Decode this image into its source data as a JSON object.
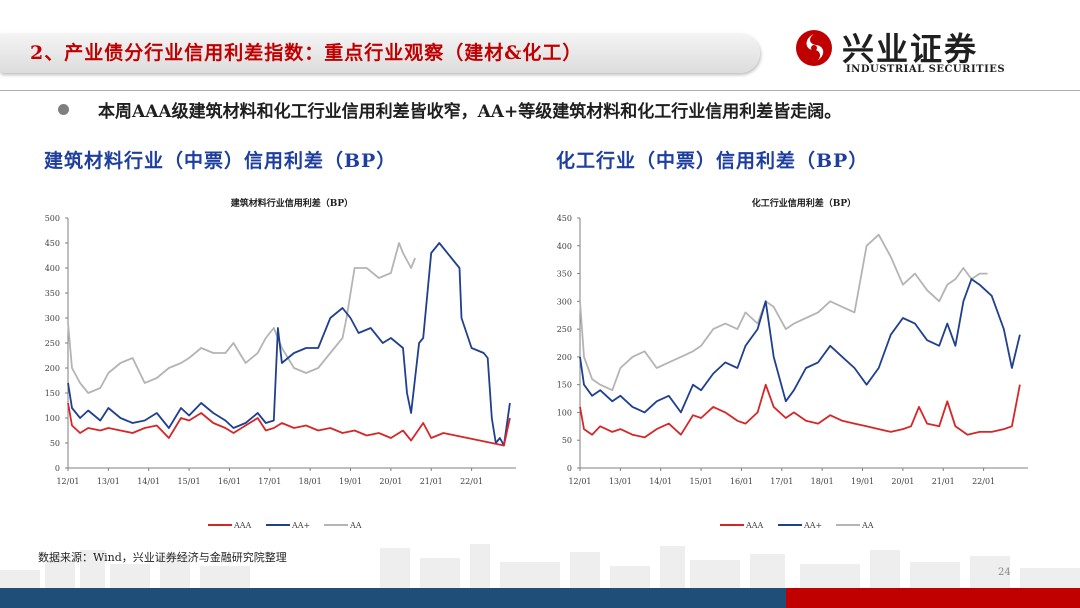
{
  "header": {
    "title": "2、产业债分行业信用利差指数：重点行业观察（建材&化工）",
    "logo_cn": "兴业证券",
    "logo_en": "INDUSTRIAL SECURITIES",
    "logo_color": "#c00000"
  },
  "bullet": {
    "text": "本周AAA级建筑材料和化工行业信用利差皆收窄，AA+等级建筑材料和化工行业信用利差皆走阔。"
  },
  "footer": {
    "source": "数据来源：Wind，兴业证券经济与金融研究院整理",
    "page_number": "24"
  },
  "chart_data": [
    {
      "type": "line",
      "heading": "建筑材料行业（中票）信用利差（BP）",
      "title": "建筑材料行业信用利差（BP）",
      "x_ticks": [
        "12/01",
        "13/01",
        "14/01",
        "15/01",
        "16/01",
        "17/01",
        "18/01",
        "19/01",
        "20/01",
        "21/01",
        "22/01"
      ],
      "ylim": [
        0,
        500
      ],
      "y_ticks": [
        "0",
        "50",
        "100",
        "150",
        "200",
        "250",
        "300",
        "350",
        "400",
        "450",
        "500"
      ],
      "legend_position": "bottom",
      "grid": false,
      "series": [
        {
          "name": "AAA",
          "color": "#d62728",
          "x": [
            2012.0,
            2012.1,
            2012.3,
            2012.5,
            2012.8,
            2013.0,
            2013.3,
            2013.6,
            2013.9,
            2014.2,
            2014.5,
            2014.8,
            2015.0,
            2015.3,
            2015.6,
            2015.9,
            2016.1,
            2016.4,
            2016.7,
            2016.9,
            2017.1,
            2017.3,
            2017.6,
            2017.9,
            2018.2,
            2018.5,
            2018.8,
            2019.1,
            2019.4,
            2019.7,
            2020.0,
            2020.3,
            2020.5,
            2020.8,
            2021.0,
            2021.3,
            2021.6,
            2021.9,
            2022.2,
            2022.5,
            2022.8,
            2022.95
          ],
          "y": [
            130,
            85,
            70,
            80,
            75,
            80,
            75,
            70,
            80,
            85,
            60,
            100,
            95,
            110,
            90,
            80,
            70,
            85,
            100,
            75,
            80,
            90,
            80,
            85,
            75,
            80,
            70,
            75,
            65,
            70,
            60,
            75,
            55,
            90,
            60,
            70,
            65,
            60,
            55,
            50,
            45,
            100
          ]
        },
        {
          "name": "AA+",
          "color": "#1f3f8f",
          "x": [
            2012.0,
            2012.1,
            2012.3,
            2012.5,
            2012.8,
            2013.0,
            2013.3,
            2013.6,
            2013.9,
            2014.2,
            2014.5,
            2014.8,
            2015.0,
            2015.3,
            2015.6,
            2015.9,
            2016.1,
            2016.4,
            2016.7,
            2016.9,
            2017.1,
            2017.2,
            2017.3,
            2017.6,
            2017.9,
            2018.2,
            2018.5,
            2018.8,
            2019.0,
            2019.2,
            2019.5,
            2019.8,
            2020.0,
            2020.3,
            2020.4,
            2020.5,
            2020.7,
            2020.8,
            2021.0,
            2021.2,
            2021.5,
            2021.7,
            2021.75,
            2022.0,
            2022.3,
            2022.4,
            2022.5,
            2022.6,
            2022.7,
            2022.8,
            2022.95
          ],
          "y": [
            170,
            120,
            100,
            115,
            95,
            120,
            100,
            90,
            95,
            110,
            80,
            120,
            105,
            130,
            110,
            95,
            80,
            90,
            110,
            90,
            95,
            280,
            210,
            230,
            240,
            240,
            300,
            320,
            300,
            270,
            280,
            250,
            260,
            240,
            150,
            110,
            250,
            260,
            430,
            450,
            420,
            400,
            300,
            240,
            230,
            220,
            100,
            50,
            60,
            45,
            130
          ]
        },
        {
          "name": "AA",
          "color": "#b4b4b4",
          "x": [
            2012.0,
            2012.1,
            2012.3,
            2012.5,
            2012.8,
            2013.0,
            2013.3,
            2013.6,
            2013.9,
            2014.2,
            2014.5,
            2014.8,
            2015.0,
            2015.3,
            2015.6,
            2015.9,
            2016.1,
            2016.4,
            2016.7,
            2016.9,
            2017.1,
            2017.3,
            2017.6,
            2017.9,
            2018.2,
            2018.5,
            2018.8,
            2018.9,
            2019.1,
            2019.4,
            2019.7,
            2020.0,
            2020.2,
            2020.3,
            2020.5,
            2020.6
          ],
          "y": [
            290,
            200,
            170,
            150,
            160,
            190,
            210,
            220,
            170,
            180,
            200,
            210,
            220,
            240,
            230,
            230,
            250,
            210,
            230,
            260,
            280,
            240,
            200,
            190,
            200,
            230,
            260,
            300,
            400,
            400,
            380,
            390,
            450,
            430,
            400,
            420
          ]
        }
      ]
    },
    {
      "type": "line",
      "heading": "化工行业（中票）信用利差（BP）",
      "title": "化工行业信用利差（BP）",
      "x_ticks": [
        "12/01",
        "13/01",
        "14/01",
        "15/01",
        "16/01",
        "17/01",
        "18/01",
        "19/01",
        "20/01",
        "21/01",
        "22/01"
      ],
      "ylim": [
        0,
        450
      ],
      "y_ticks": [
        "0",
        "50",
        "100",
        "150",
        "200",
        "250",
        "300",
        "350",
        "400",
        "450"
      ],
      "legend_position": "bottom",
      "grid": false,
      "series": [
        {
          "name": "AAA",
          "color": "#d62728",
          "x": [
            2012.0,
            2012.1,
            2012.3,
            2012.5,
            2012.8,
            2013.0,
            2013.3,
            2013.6,
            2013.9,
            2014.2,
            2014.5,
            2014.8,
            2015.0,
            2015.3,
            2015.6,
            2015.9,
            2016.1,
            2016.4,
            2016.6,
            2016.8,
            2017.1,
            2017.3,
            2017.6,
            2017.9,
            2018.2,
            2018.5,
            2018.8,
            2019.1,
            2019.4,
            2019.7,
            2020.0,
            2020.2,
            2020.4,
            2020.6,
            2020.9,
            2021.1,
            2021.3,
            2021.6,
            2021.9,
            2022.2,
            2022.5,
            2022.7,
            2022.9
          ],
          "y": [
            110,
            70,
            60,
            75,
            65,
            70,
            60,
            55,
            70,
            80,
            60,
            95,
            90,
            110,
            100,
            85,
            80,
            100,
            150,
            110,
            90,
            100,
            85,
            80,
            95,
            85,
            80,
            75,
            70,
            65,
            70,
            75,
            110,
            80,
            75,
            120,
            75,
            60,
            65,
            65,
            70,
            75,
            150
          ]
        },
        {
          "name": "AA+",
          "color": "#1f3f8f",
          "x": [
            2012.0,
            2012.1,
            2012.3,
            2012.5,
            2012.8,
            2013.0,
            2013.3,
            2013.6,
            2013.9,
            2014.2,
            2014.5,
            2014.8,
            2015.0,
            2015.3,
            2015.6,
            2015.9,
            2016.1,
            2016.4,
            2016.6,
            2016.8,
            2017.1,
            2017.3,
            2017.6,
            2017.9,
            2018.2,
            2018.5,
            2018.8,
            2019.1,
            2019.4,
            2019.7,
            2020.0,
            2020.3,
            2020.6,
            2020.9,
            2021.1,
            2021.3,
            2021.5,
            2021.7,
            2021.9,
            2022.2,
            2022.5,
            2022.7,
            2022.9
          ],
          "y": [
            200,
            150,
            130,
            140,
            120,
            130,
            110,
            100,
            120,
            130,
            100,
            150,
            140,
            170,
            190,
            180,
            220,
            250,
            300,
            200,
            120,
            140,
            180,
            190,
            220,
            200,
            180,
            150,
            180,
            240,
            270,
            260,
            230,
            220,
            260,
            220,
            300,
            340,
            330,
            310,
            250,
            180,
            240
          ]
        },
        {
          "name": "AA",
          "color": "#b4b4b4",
          "x": [
            2012.0,
            2012.1,
            2012.3,
            2012.5,
            2012.8,
            2013.0,
            2013.3,
            2013.6,
            2013.9,
            2014.2,
            2014.5,
            2014.8,
            2015.0,
            2015.3,
            2015.6,
            2015.9,
            2016.1,
            2016.4,
            2016.6,
            2016.8,
            2017.1,
            2017.3,
            2017.6,
            2017.9,
            2018.2,
            2018.5,
            2018.8,
            2019.1,
            2019.4,
            2019.7,
            2020.0,
            2020.3,
            2020.6,
            2020.9,
            2021.1,
            2021.3,
            2021.5,
            2021.7,
            2021.9,
            2022.1
          ],
          "y": [
            300,
            200,
            160,
            150,
            140,
            180,
            200,
            210,
            180,
            190,
            200,
            210,
            220,
            250,
            260,
            250,
            280,
            260,
            300,
            290,
            250,
            260,
            270,
            280,
            300,
            290,
            280,
            400,
            420,
            380,
            330,
            350,
            320,
            300,
            330,
            340,
            360,
            340,
            350,
            350
          ]
        }
      ]
    }
  ]
}
